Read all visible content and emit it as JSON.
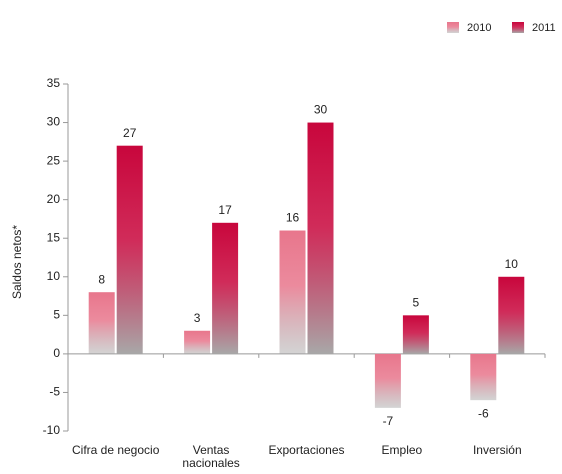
{
  "chart_data": {
    "type": "bar",
    "y_label": "Saldos netos*",
    "categories": [
      "Cifra de negocio",
      "Ventas nacionales",
      "Exportaciones",
      "Empleo",
      "Inversión"
    ],
    "series": [
      {
        "name": "2010",
        "color": "#e8768c",
        "values": [
          8,
          3,
          16,
          -7,
          -6
        ]
      },
      {
        "name": "2011",
        "color": "#c8063c",
        "values": [
          27,
          17,
          30,
          5,
          10
        ]
      }
    ],
    "ylim": [
      -10,
      35
    ],
    "yticks": [
      -10,
      -5,
      0,
      5,
      10,
      15,
      20,
      25,
      30,
      35
    ],
    "legend": "top-right"
  }
}
